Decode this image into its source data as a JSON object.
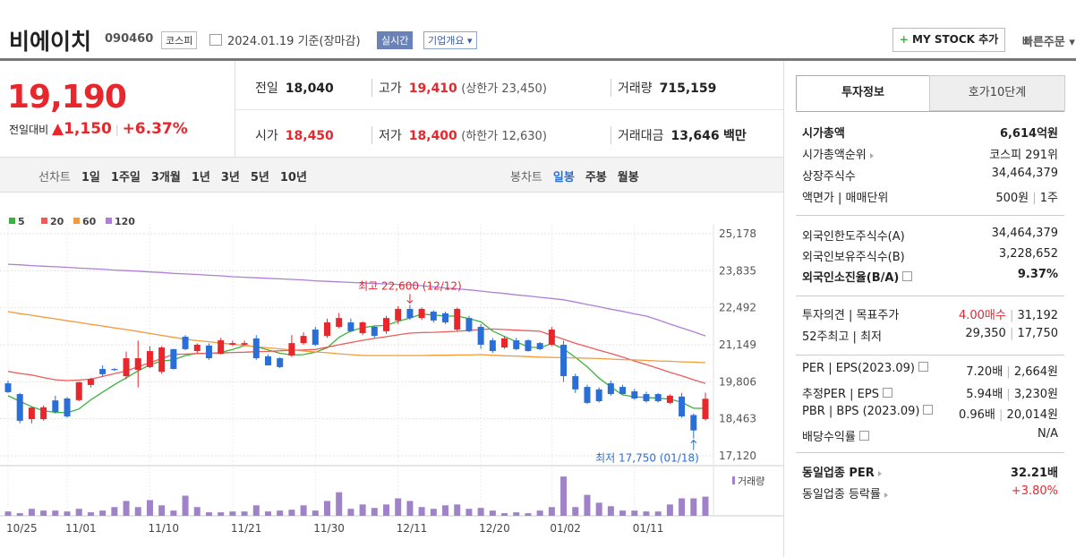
{
  "header": {
    "name": "비에이치",
    "code": "090460",
    "market": "코스피",
    "date": "2024.01.19",
    "basis": "기준(장마감)",
    "realtime": "실시간",
    "company_info": "기업개요",
    "my_stock": "MY STOCK 추가",
    "quick_order": "빠른주문"
  },
  "price": {
    "current": "19,190",
    "change_label": "전일대비",
    "change": "1,150",
    "change_rate": "+6.37%"
  },
  "quote": [
    {
      "label": "전일",
      "value": "18,040"
    },
    {
      "label": "고가",
      "value": "19,410",
      "sub": "(상한가 23,450)"
    },
    {
      "label": "거래량",
      "value": "715,159"
    },
    {
      "label": "시가",
      "value": "18,450"
    },
    {
      "label": "저가",
      "value": "18,400",
      "sub": "(하한가 12,630)"
    },
    {
      "label": "거래대금",
      "value": "13,646",
      "unit": "백만"
    }
  ],
  "periods": {
    "line_label": "선차트",
    "line": [
      "1일",
      "1주일",
      "3개월",
      "1년",
      "3년",
      "5년",
      "10년"
    ],
    "candle_label": "봉차트",
    "candle": [
      "일봉",
      "주봉",
      "월봉"
    ]
  },
  "tabs": [
    "투자정보",
    "호가10단계"
  ],
  "info": [
    [
      {
        "label": "시가총액",
        "value": [
          "6,614억원"
        ]
      },
      {
        "label": "시가총액순위",
        "value": [
          "코스피 291위"
        ]
      },
      {
        "label": "상장주식수",
        "value": [
          "34,464,379"
        ]
      },
      {
        "label": "액면가 | 매매단위",
        "value": [
          "500원",
          "1주"
        ]
      }
    ],
    [
      {
        "label": "외국인한도주식수(A)",
        "value": [
          "34,464,379"
        ]
      },
      {
        "label": "외국인보유주식수(B)",
        "value": [
          "3,228,652"
        ]
      },
      {
        "label": "외국인소진율(B/A)",
        "value": [
          "9.37%"
        ]
      }
    ],
    [
      {
        "label": "투자의견 | 목표주가",
        "value": [
          "4.00매수",
          "31,192"
        ]
      },
      {
        "label": "52주최고 | 최저",
        "value": [
          "29,350",
          "17,750"
        ]
      }
    ],
    [
      {
        "label": "PER | EPS(2023.09)",
        "value": [
          "7.20배",
          "2,664원"
        ]
      },
      {
        "label": "추정PER | EPS",
        "value": [
          "5.94배",
          "3,230원"
        ]
      },
      {
        "label": "PBR | BPS (2023.09)",
        "value": [
          "0.96배",
          "20,014원"
        ]
      },
      {
        "label": "배당수익률",
        "value": [
          "N/A"
        ]
      }
    ],
    [
      {
        "label": "동일업종 PER",
        "value": [
          "32.21배"
        ]
      },
      {
        "label": "동일업종 등락률",
        "value": [
          "+3.80%"
        ]
      }
    ]
  ],
  "chart_data": {
    "type": "candlestick",
    "up_color": "#e8262c",
    "down_color": "#2a6fd8",
    "categories": [
      "10/25",
      null,
      null,
      null,
      null,
      "11/01",
      null,
      null,
      null,
      null,
      null,
      null,
      "11/10",
      null,
      null,
      null,
      null,
      null,
      null,
      "11/21",
      null,
      null,
      null,
      null,
      null,
      null,
      "11/30",
      null,
      null,
      null,
      null,
      null,
      null,
      "12/11",
      null,
      null,
      null,
      null,
      null,
      null,
      "12/20",
      null,
      null,
      null,
      null,
      null,
      "01/02",
      null,
      null,
      null,
      null,
      null,
      null,
      "01/11",
      null,
      null,
      null,
      null,
      null,
      null
    ],
    "open": [
      19750,
      19360,
      18450,
      18450,
      19130,
      19200,
      19140,
      19690,
      20270,
      20270,
      20010,
      20240,
      20340,
      20170,
      20990,
      21440,
      20920,
      21120,
      20820,
      21150,
      21150,
      21380,
      20730,
      20660,
      20760,
      21210,
      21700,
      21470,
      21800,
      21960,
      21570,
      21800,
      21640,
      22030,
      22450,
      22120,
      22350,
      22290,
      21700,
      22120,
      21800,
      21310,
      21050,
      21310,
      21310,
      21210,
      21150,
      21150,
      20010,
      19620,
      19530,
      19750,
      19620,
      19460,
      19360,
      19360,
      19040,
      19270,
      18600,
      18450
    ],
    "high": [
      19850,
      19400,
      18900,
      18950,
      19300,
      19250,
      19800,
      19950,
      20400,
      20300,
      20900,
      21300,
      21100,
      21100,
      21000,
      21500,
      21200,
      21200,
      21400,
      21300,
      21300,
      21500,
      20800,
      20700,
      21500,
      21600,
      21800,
      22100,
      22300,
      22100,
      22000,
      21850,
      22200,
      22550,
      22600,
      22500,
      22400,
      22350,
      22500,
      22200,
      21900,
      21400,
      21450,
      21400,
      21350,
      21250,
      21800,
      21300,
      20100,
      19700,
      19600,
      19850,
      19700,
      19550,
      19450,
      19400,
      19350,
      19400,
      18650,
      19410
    ],
    "low": [
      19400,
      18300,
      18300,
      18400,
      18650,
      18500,
      19100,
      19600,
      20000,
      20200,
      19900,
      19600,
      20300,
      20100,
      20250,
      20950,
      20850,
      20600,
      20800,
      21100,
      21100,
      20600,
      20400,
      20300,
      20700,
      21150,
      21100,
      21400,
      21750,
      21600,
      21500,
      21400,
      21550,
      21900,
      22050,
      22050,
      21950,
      21900,
      21650,
      21600,
      21000,
      20850,
      21000,
      20950,
      20900,
      20950,
      21100,
      19800,
      19400,
      19000,
      19050,
      19300,
      19350,
      19150,
      19050,
      19050,
      19000,
      18500,
      17750,
      18400
    ],
    "close": [
      19430,
      18390,
      18870,
      18880,
      18710,
      18550,
      19790,
      19910,
      20080,
      20230,
      20660,
      20660,
      20920,
      21050,
      20270,
      20990,
      21150,
      20660,
      21310,
      21210,
      21210,
      20660,
      20400,
      20340,
      21210,
      21470,
      21150,
      21960,
      22120,
      21640,
      21960,
      21470,
      22120,
      22450,
      22120,
      22450,
      22030,
      21960,
      22450,
      21640,
      21150,
      20920,
      21380,
      20990,
      20920,
      20990,
      21700,
      20010,
      19530,
      19040,
      19100,
      19360,
      19360,
      19200,
      19100,
      19100,
      19300,
      18550,
      18040,
      19190
    ],
    "ylim": [
      17120,
      25178
    ],
    "yticks": [
      {
        "value": 25178,
        "label": "25,178"
      },
      {
        "value": 23835,
        "label": "23,835"
      },
      {
        "value": 22492,
        "label": "22,492"
      },
      {
        "value": 21149,
        "label": "21,149"
      },
      {
        "value": 19806,
        "label": "19,806"
      },
      {
        "value": 18463,
        "label": "18,463"
      },
      {
        "value": 17120,
        "label": "17,120"
      }
    ],
    "grid": true,
    "ma": [
      {
        "name": "5",
        "color": "#3cb23c",
        "values": [
          19300,
          19100,
          18900,
          18750,
          18700,
          18680,
          18820,
          19150,
          19430,
          19700,
          19950,
          20200,
          20420,
          20560,
          20600,
          20760,
          20840,
          20830,
          20870,
          20980,
          21120,
          21080,
          20960,
          20840,
          20780,
          20790,
          20880,
          21040,
          21420,
          21650,
          21770,
          21830,
          21850,
          22000,
          22120,
          22260,
          22230,
          22190,
          22190,
          22100,
          21980,
          21650,
          21450,
          21260,
          21070,
          21040,
          21190,
          21000,
          20690,
          20350,
          19940,
          19620,
          19330,
          19260,
          19240,
          19210,
          19180,
          19060,
          18850,
          18840
        ]
      },
      {
        "name": "20",
        "color": "#ee5a5a",
        "values": [
          20180,
          20110,
          20050,
          19960,
          19880,
          19850,
          19870,
          19900,
          20000,
          20100,
          20200,
          20350,
          20500,
          20650,
          20800,
          20810,
          20830,
          20840,
          20850,
          20870,
          20880,
          20900,
          20910,
          20930,
          20950,
          20960,
          20980,
          21060,
          21150,
          21230,
          21310,
          21380,
          21440,
          21510,
          21570,
          21590,
          21600,
          21620,
          21640,
          21670,
          21700,
          21720,
          21700,
          21680,
          21660,
          21640,
          21490,
          21350,
          21200,
          21080,
          20950,
          20830,
          20700,
          20560,
          20430,
          20290,
          20150,
          20020,
          19880,
          19750
        ]
      },
      {
        "name": "60",
        "color": "#f39a3a",
        "values": [
          22350,
          22280,
          22220,
          22150,
          22090,
          22020,
          21960,
          21890,
          21830,
          21760,
          21700,
          21630,
          21560,
          21490,
          21420,
          21350,
          21300,
          21260,
          21210,
          21170,
          21120,
          21080,
          21040,
          21000,
          20960,
          20920,
          20890,
          20860,
          20820,
          20790,
          20760,
          20760,
          20760,
          20760,
          20760,
          20760,
          20770,
          20770,
          20780,
          20780,
          20790,
          20770,
          20750,
          20740,
          20720,
          20700,
          20690,
          20680,
          20670,
          20660,
          20650,
          20630,
          20610,
          20600,
          20580,
          20560,
          20550,
          20530,
          20520,
          20500
        ]
      },
      {
        "name": "120",
        "color": "#b07ed8",
        "values": [
          24070,
          24050,
          24020,
          24000,
          23980,
          23960,
          23930,
          23910,
          23890,
          23860,
          23840,
          23820,
          23790,
          23770,
          23740,
          23720,
          23700,
          23670,
          23650,
          23620,
          23600,
          23580,
          23560,
          23540,
          23520,
          23500,
          23470,
          23450,
          23430,
          23410,
          23390,
          23370,
          23360,
          23340,
          23330,
          23290,
          23250,
          23210,
          23180,
          23140,
          23100,
          23050,
          23010,
          22960,
          22920,
          22870,
          22830,
          22780,
          22700,
          22610,
          22530,
          22440,
          22360,
          22270,
          22190,
          22050,
          21900,
          21760,
          21620,
          21470
        ]
      }
    ],
    "volume": {
      "name": "거래량",
      "color": "#9f82c8",
      "ylim": [
        0,
        1800000
      ],
      "values": [
        162500,
        97500,
        260000,
        195000,
        195000,
        162500,
        260000,
        130000,
        195000,
        325000,
        552500,
        325000,
        585000,
        390000,
        195000,
        747500,
        325000,
        130000,
        130000,
        162500,
        162500,
        390000,
        162500,
        195000,
        227500,
        390000,
        195000,
        552500,
        877500,
        260000,
        422500,
        292500,
        422500,
        650000,
        552500,
        325000,
        260000,
        390000,
        422500,
        260000,
        292500,
        195000,
        97500,
        130000,
        97500,
        195000,
        325000,
        1462500,
        325000,
        780000,
        487500,
        357500,
        195000,
        195000,
        162500,
        162500,
        422500,
        650000,
        650000,
        715159
      ]
    },
    "annotations": {
      "high": "최고 22,600 (12/12)",
      "low": "최저 17,750 (01/18)"
    }
  }
}
